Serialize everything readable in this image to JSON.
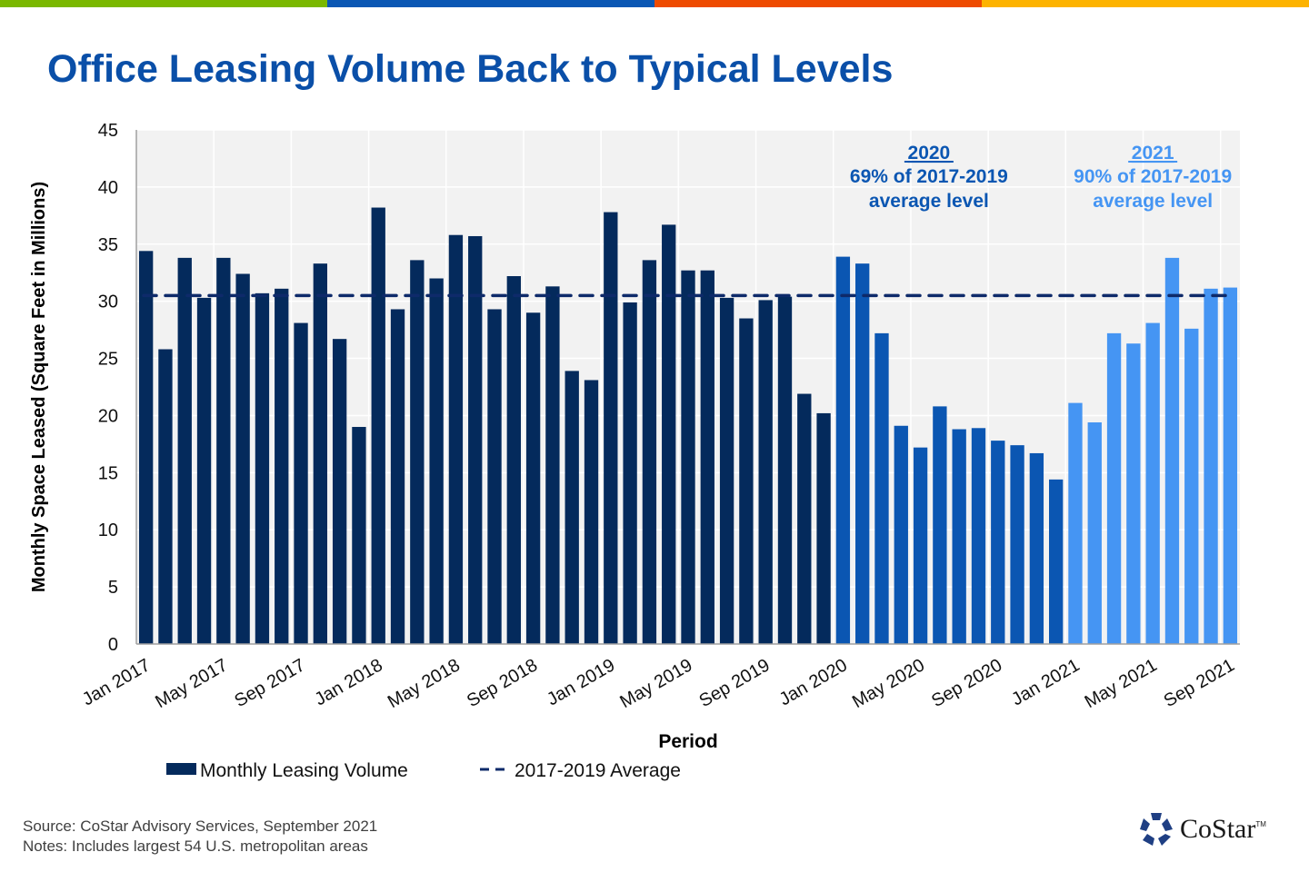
{
  "header": {
    "title": "Office Leasing Volume Back to Typical Levels",
    "stripe_colors": [
      "#7ab800",
      "#0a57b4",
      "#ee4b00",
      "#fdb300"
    ]
  },
  "chart_data": {
    "type": "bar",
    "title": "Office Leasing Volume Back to Typical Levels",
    "xlabel": "Period",
    "ylabel": "Monthly Space Leased (Square Feet in Millions)",
    "ylim": [
      0,
      45
    ],
    "yticks": [
      0,
      5,
      10,
      15,
      20,
      25,
      30,
      35,
      40,
      45
    ],
    "grid": true,
    "legend_position": "bottom-left",
    "x_tick_labels": [
      "Jan 2017",
      "May 2017",
      "Sep 2017",
      "Jan 2018",
      "May 2018",
      "Sep 2018",
      "Jan 2019",
      "May 2019",
      "Sep 2019",
      "Jan 2020",
      "May 2020",
      "Sep 2020",
      "Jan 2021",
      "May 2021",
      "Sep 2021"
    ],
    "x_tick_every": 4,
    "categories": [
      "Jan 2017",
      "Feb 2017",
      "Mar 2017",
      "Apr 2017",
      "May 2017",
      "Jun 2017",
      "Jul 2017",
      "Aug 2017",
      "Sep 2017",
      "Oct 2017",
      "Nov 2017",
      "Dec 2017",
      "Jan 2018",
      "Feb 2018",
      "Mar 2018",
      "Apr 2018",
      "May 2018",
      "Jun 2018",
      "Jul 2018",
      "Aug 2018",
      "Sep 2018",
      "Oct 2018",
      "Nov 2018",
      "Dec 2018",
      "Jan 2019",
      "Feb 2019",
      "Mar 2019",
      "Apr 2019",
      "May 2019",
      "Jun 2019",
      "Jul 2019",
      "Aug 2019",
      "Sep 2019",
      "Oct 2019",
      "Nov 2019",
      "Dec 2019",
      "Jan 2020",
      "Feb 2020",
      "Mar 2020",
      "Apr 2020",
      "May 2020",
      "Jun 2020",
      "Jul 2020",
      "Aug 2020",
      "Sep 2020",
      "Oct 2020",
      "Nov 2020",
      "Dec 2020",
      "Jan 2021",
      "Feb 2021",
      "Mar 2021",
      "Apr 2021",
      "May 2021",
      "Jun 2021",
      "Jul 2021",
      "Aug 2021",
      "Sep 2021"
    ],
    "series": [
      {
        "name": "Monthly Leasing Volume",
        "values": [
          34.4,
          25.8,
          33.8,
          30.3,
          33.8,
          32.4,
          30.7,
          31.1,
          28.1,
          33.3,
          26.7,
          19.0,
          38.2,
          29.3,
          33.6,
          32.0,
          35.8,
          35.7,
          29.3,
          32.2,
          29.0,
          31.3,
          23.9,
          23.1,
          37.8,
          29.9,
          33.6,
          36.7,
          32.7,
          32.7,
          30.3,
          28.5,
          30.1,
          30.4,
          21.9,
          20.2,
          33.9,
          33.3,
          27.2,
          19.1,
          17.2,
          20.8,
          18.8,
          18.9,
          17.8,
          17.4,
          16.7,
          14.4,
          21.1,
          19.4,
          27.2,
          26.3,
          28.1,
          33.8,
          27.6,
          31.1,
          31.2
        ],
        "period_colors": {
          "2017-2019": "#042a5c",
          "2020": "#0b56b2",
          "2021": "#4595f3"
        }
      },
      {
        "name": "2017-2019 Average",
        "type": "dashed-line",
        "value": 30.5,
        "color": "#0e2a6a"
      }
    ],
    "annotations": [
      {
        "year": "2020",
        "line1": "69% of 2017-2019",
        "line2": "average level",
        "color": "#0b56b2",
        "x_category": "Jun 2020"
      },
      {
        "year": "2021",
        "line1": "90% of 2017-2019",
        "line2": "average level",
        "color": "#4595f3",
        "x_category": "May 2021"
      }
    ],
    "legend": [
      "Monthly Leasing Volume",
      "2017-2019 Average"
    ]
  },
  "footer": {
    "source": "Source: CoStar Advisory Services, September 2021",
    "notes": "Notes: Includes largest 54 U.S. metropolitan areas"
  },
  "logo": {
    "name": "CoStar",
    "tm": "TM",
    "color": "#1f3f83"
  }
}
